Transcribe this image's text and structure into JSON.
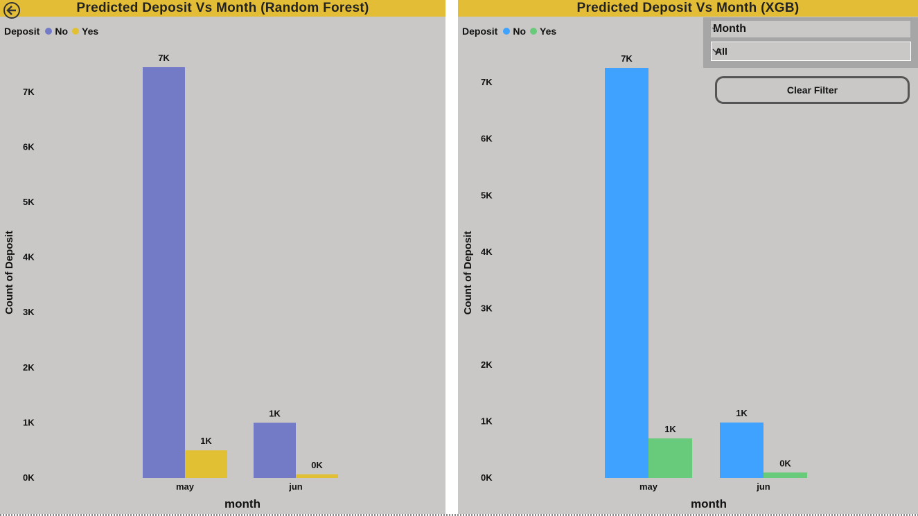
{
  "left_panel": {
    "title": "Predicted Deposit Vs Month (Random Forest)",
    "legend_title": "Deposit",
    "legend": [
      {
        "label": "No",
        "color": "#737bc7"
      },
      {
        "label": "Yes",
        "color": "#e1c033"
      }
    ]
  },
  "right_panel": {
    "title": "Predicted Deposit Vs Month (XGB)",
    "legend_title": "Deposit",
    "legend": [
      {
        "label": "No",
        "color": "#3fa2fe"
      },
      {
        "label": "Yes",
        "color": "#67cb7b"
      }
    ]
  },
  "slicer": {
    "title": "Month",
    "selected": "All"
  },
  "clear_filter_label": "Clear Filter",
  "chart_data": [
    {
      "type": "bar",
      "title": "Predicted Deposit Vs Month (Random Forest)",
      "xlabel": "month",
      "ylabel": "Count of Deposit",
      "categories": [
        "may",
        "jun"
      ],
      "yticks": [
        "0K",
        "1K",
        "2K",
        "3K",
        "4K",
        "5K",
        "6K",
        "7K"
      ],
      "ylim": [
        0,
        7450
      ],
      "series": [
        {
          "name": "No",
          "color": "#737bc7",
          "values": [
            7450,
            1000
          ],
          "labels": [
            "7K",
            "1K"
          ]
        },
        {
          "name": "Yes",
          "color": "#e1c033",
          "values": [
            500,
            65
          ],
          "labels": [
            "1K",
            "0K"
          ]
        }
      ]
    },
    {
      "type": "bar",
      "title": "Predicted Deposit Vs Month (XGB)",
      "xlabel": "month",
      "ylabel": "Count of Deposit",
      "categories": [
        "may",
        "jun"
      ],
      "yticks": [
        "0K",
        "1K",
        "2K",
        "3K",
        "4K",
        "5K",
        "6K",
        "7K"
      ],
      "ylim": [
        0,
        7260
      ],
      "series": [
        {
          "name": "No",
          "color": "#3fa2fe",
          "values": [
            7260,
            980
          ],
          "labels": [
            "7K",
            "1K"
          ]
        },
        {
          "name": "Yes",
          "color": "#67cb7b",
          "values": [
            700,
            95
          ],
          "labels": [
            "1K",
            "0K"
          ]
        }
      ]
    }
  ]
}
